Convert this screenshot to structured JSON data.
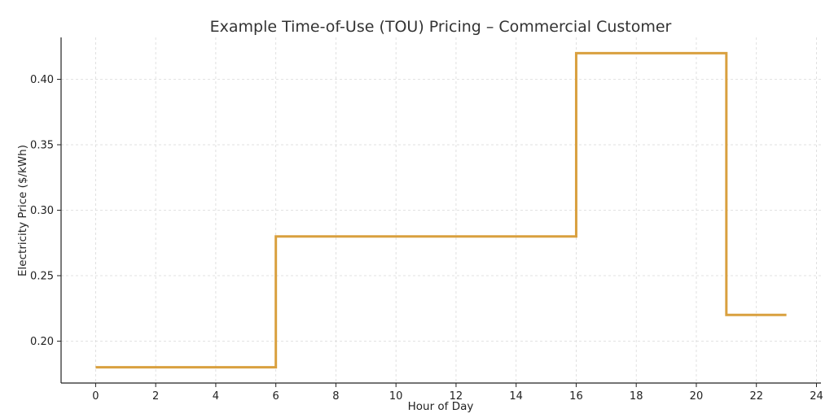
{
  "chart_data": {
    "type": "line",
    "step": "post",
    "title": "Example Time-of-Use (TOU) Pricing – Commercial Customer",
    "xlabel": "Hour of Day",
    "ylabel": "Electricity Price ($/kWh)",
    "xlim": [
      -1.15,
      24.15
    ],
    "ylim": [
      0.168,
      0.432
    ],
    "x_ticks": [
      0,
      2,
      4,
      6,
      8,
      10,
      12,
      14,
      16,
      18,
      20,
      22,
      24
    ],
    "y_ticks": [
      0.2,
      0.25,
      0.3,
      0.35,
      0.4
    ],
    "grid": true,
    "series": [
      {
        "color": "#D9A03F",
        "x": [
          0,
          1,
          2,
          3,
          4,
          5,
          6,
          7,
          8,
          9,
          10,
          11,
          12,
          13,
          14,
          15,
          16,
          17,
          18,
          19,
          20,
          21,
          22,
          23
        ],
        "y": [
          0.18,
          0.18,
          0.18,
          0.18,
          0.18,
          0.18,
          0.28,
          0.28,
          0.28,
          0.28,
          0.28,
          0.28,
          0.28,
          0.28,
          0.28,
          0.28,
          0.42,
          0.42,
          0.42,
          0.42,
          0.42,
          0.22,
          0.22,
          0.22
        ]
      }
    ]
  }
}
